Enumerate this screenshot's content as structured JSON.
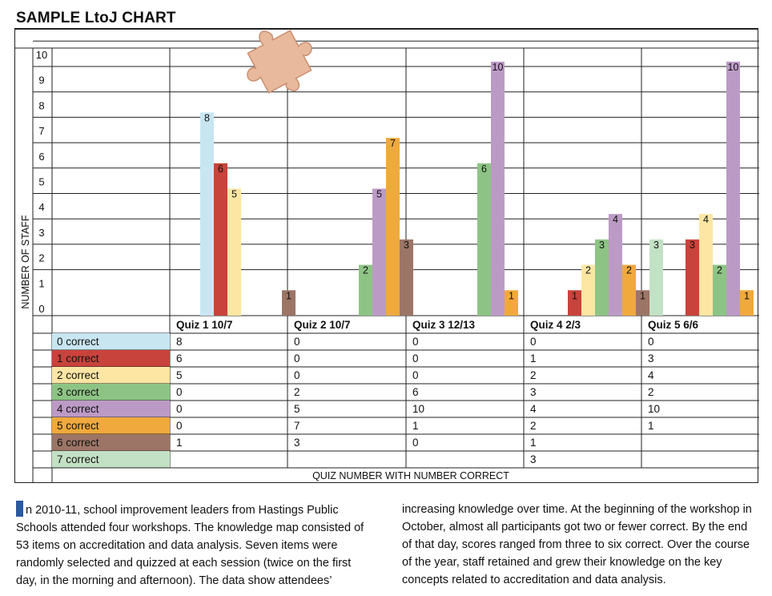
{
  "title": "SAMPLE LtoJ CHART",
  "chart_data": {
    "type": "bar",
    "ylabel": "NUMBER OF STAFF",
    "xlabel": "QUIZ NUMBER WITH NUMBER CORRECT",
    "ylim": [
      0,
      10
    ],
    "yticks": [
      "0",
      "1",
      "2",
      "3",
      "4",
      "5",
      "6",
      "7",
      "8",
      "9",
      "10"
    ],
    "categories": [
      "Quiz 1 10/7",
      "Quiz 2 10/7",
      "Quiz 3 12/13",
      "Quiz 4 2/3",
      "Quiz 5 6/6"
    ],
    "series": [
      {
        "name": "0 correct",
        "color": "#c8e6f1",
        "values": [
          8,
          0,
          0,
          0,
          0
        ],
        "table": [
          "8",
          "0",
          "0",
          "0",
          "0"
        ]
      },
      {
        "name": "1 correct",
        "color": "#c8433b",
        "values": [
          6,
          0,
          0,
          1,
          3
        ],
        "table": [
          "6",
          "0",
          "0",
          "1",
          "3"
        ]
      },
      {
        "name": "2 correct",
        "color": "#fde6a3",
        "values": [
          5,
          0,
          0,
          2,
          4
        ],
        "table": [
          "5",
          "0",
          "0",
          "2",
          "4"
        ]
      },
      {
        "name": "3 correct",
        "color": "#8dc485",
        "values": [
          0,
          2,
          6,
          3,
          2
        ],
        "table": [
          "0",
          "2",
          "6",
          "3",
          "2"
        ]
      },
      {
        "name": "4 correct",
        "color": "#bc9ac6",
        "values": [
          0,
          5,
          10,
          4,
          10
        ],
        "table": [
          "0",
          "5",
          "10",
          "4",
          "10"
        ]
      },
      {
        "name": "5 correct",
        "color": "#f0a93c",
        "values": [
          0,
          7,
          1,
          2,
          1
        ],
        "table": [
          "0",
          "7",
          "1",
          "2",
          "1"
        ]
      },
      {
        "name": "6 correct",
        "color": "#9c7566",
        "values": [
          1,
          3,
          0,
          1,
          0
        ],
        "table": [
          "1",
          "3",
          "0",
          "1",
          ""
        ]
      },
      {
        "name": "7 correct",
        "color": "#c3e1c4",
        "values": [
          0,
          0,
          0,
          3,
          0
        ],
        "table": [
          "",
          "",
          "",
          "3",
          ""
        ]
      }
    ],
    "grid": true,
    "legend": "table-below"
  },
  "body_text": {
    "col1": "n 2010-11, school improvement leaders from Hastings Public Schools attended four workshops. The knowledge map consisted of 53 items on accreditation and data analysis. Seven items were randomly selected and quizzed at each session (twice on the first day, in the morning and afternoon). The data show attendees’",
    "col2": "increasing knowledge over time. At the beginning of the workshop in October, almost all participants got two or fewer correct. By the end of that day, scores ranged from three to six correct. Over the course of the year, staff retained and grew their knowledge on the key concepts related to accreditation and data analysis."
  }
}
